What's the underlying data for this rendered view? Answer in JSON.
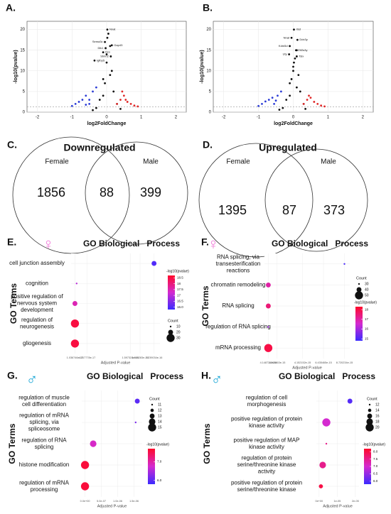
{
  "chart_data": [
    {
      "type": "volcano",
      "panel": "A.",
      "sex_symbol": "♀",
      "symbol_color": "#f07ad8",
      "xlabel": "log2FoldChange",
      "ylabel": "-log10(pvalue)",
      "xlim": [
        -2.3,
        2.3
      ],
      "ylim": [
        0,
        22
      ],
      "xticks": [
        -2,
        -1,
        0,
        1,
        2
      ],
      "yticks": [
        0,
        5,
        10,
        15,
        20
      ],
      "hline": 1.3,
      "grid": true,
      "series": [
        {
          "color": "#2b3bd6",
          "x": [
            -1.0,
            -0.9,
            -0.8,
            -0.7,
            -0.6,
            -0.5,
            -0.4,
            -0.3,
            -0.5,
            -0.6
          ],
          "values": [
            1.5,
            2,
            2.5,
            3,
            4,
            3,
            5,
            6,
            2,
            1.8
          ]
        },
        {
          "color": "#111111",
          "x": [
            -0.3,
            -0.2,
            -0.1,
            0,
            0.05,
            0.1,
            0.15,
            0.2,
            -0.05,
            0,
            0.02,
            0.1,
            -0.1,
            0.3,
            -0.4,
            0.4
          ],
          "values": [
            1,
            3,
            8,
            12,
            19,
            16,
            10,
            5,
            7,
            14,
            18,
            9,
            4,
            2,
            0.5,
            0.8
          ]
        },
        {
          "color": "#e02828",
          "x": [
            0.3,
            0.4,
            0.5,
            0.6,
            0.7,
            0.8,
            0.9,
            0.45,
            0.55
          ],
          "values": [
            2,
            3,
            4,
            2.5,
            2,
            1.6,
            1.4,
            5,
            3
          ]
        },
        {
          "color": "#111111",
          "x": [
            0.02,
            -0.05,
            0.15,
            -0.03,
            -0.1,
            0.12,
            -0.35
          ],
          "values": [
            20,
            17,
            16.2,
            15.5,
            14.5,
            13.5,
            12.5
          ],
          "labels": [
            "Nnat",
            "Sema3c",
            "Gap43",
            "Dlk1",
            "Dcx",
            "Stmn2",
            "Igfbp5"
          ]
        }
      ]
    },
    {
      "type": "volcano",
      "panel": "B.",
      "sex_symbol": "♂",
      "symbol_color": "#1aa6d6",
      "xlabel": "log2FoldChange",
      "ylabel": "-log10(pvalue)",
      "xlim": [
        -2.3,
        2.3
      ],
      "ylim": [
        0,
        22
      ],
      "xticks": [
        -2,
        -1,
        0,
        1,
        2
      ],
      "yticks": [
        0,
        5,
        10,
        15,
        20
      ],
      "hline": 1.3,
      "grid": true,
      "series": [
        {
          "color": "#2b3bd6",
          "x": [
            -1.0,
            -0.9,
            -0.8,
            -0.7,
            -0.6,
            -0.5,
            -0.45,
            -0.35,
            -0.55
          ],
          "values": [
            1.5,
            2,
            2.6,
            3,
            3.5,
            2.8,
            4,
            5,
            2
          ]
        },
        {
          "color": "#111111",
          "x": [
            -0.3,
            -0.2,
            -0.1,
            0,
            0.05,
            0.1,
            0.15,
            0.2,
            -0.05,
            0,
            0.02,
            0.1,
            -0.1,
            0.3,
            -0.4,
            0.35
          ],
          "values": [
            1,
            3,
            7,
            11,
            13,
            15,
            9,
            5,
            8,
            10,
            12,
            6,
            4,
            2,
            0.6,
            0.8
          ]
        },
        {
          "color": "#e02828",
          "x": [
            0.3,
            0.4,
            0.5,
            0.6,
            0.7,
            0.8,
            0.9,
            0.45
          ],
          "values": [
            2,
            3,
            3.5,
            2.5,
            2,
            1.6,
            1.4,
            4
          ]
        },
        {
          "color": "#111111",
          "x": [
            0.02,
            -0.05,
            0.12,
            -0.1,
            0.08,
            -0.12,
            0.1
          ],
          "values": [
            20,
            18,
            17.5,
            16,
            15,
            14,
            13.5
          ],
          "labels": [
            "Xist",
            "Nnat",
            "Ddx3y",
            "Kdm5d",
            "Eif2s3y",
            "Uty",
            "Tsix"
          ]
        }
      ]
    },
    {
      "type": "venn",
      "panel": "C.",
      "title": "Downregulated",
      "sets": [
        "Female",
        "Male"
      ],
      "counts": [
        1856,
        88,
        399
      ]
    },
    {
      "type": "venn",
      "panel": "D.",
      "title": "Upregulated",
      "sets": [
        "Female",
        "Male"
      ],
      "counts": [
        1395,
        87,
        373
      ]
    },
    {
      "type": "dot",
      "panel": "E.",
      "sex_symbol": "♀",
      "symbol_color": "#f07ad8",
      "title": "GO Biological   Process",
      "xlabel": "Adjusted P-value",
      "ylabel": "GO Terms",
      "categories": [
        "cell junction assembly",
        "cognition",
        "positive regulation of nervous system development",
        "regulation of neurogenesis",
        "gliogenesis"
      ],
      "values": [
        2.24e-16,
        1.5e-17,
        1.04e-17,
        1.04e-17,
        1.04e-17
      ],
      "sizes": [
        20,
        10,
        20,
        30,
        30
      ],
      "color_values": [
        16.0,
        17.0,
        17.5,
        18.5,
        18.5
      ],
      "xlim": [
        0,
        2.4e-16
      ],
      "xticks": [
        {
          "value": 1.036746e-17,
          "label": "1.036746e-17"
        },
        {
          "value": 4.317778e-17,
          "label": "4.317778e-17"
        },
        {
          "value": 1.597324e-16,
          "label": "1.597324e-16"
        },
        {
          "value": 1.863283e-16,
          "label": "1.863283e-16"
        },
        {
          "value": 2.239034e-16,
          "label": "2.239034e-16"
        }
      ],
      "color_title": "-log10(pvalue)",
      "color_scale": [
        "#3b2bff",
        "#d42ad0",
        "#ff0a2a"
      ],
      "clim": [
        15.8,
        18.7
      ],
      "color_ticks": [
        {
          "value": 16,
          "label": "16.0"
        },
        16.5,
        17,
        17.5,
        18,
        18.5
      ],
      "size_title": "Count",
      "size_lim": [
        10,
        30
      ],
      "size_ticks": [
        10,
        20,
        30
      ]
    },
    {
      "type": "dot",
      "panel": "F.",
      "sex_symbol": "♀",
      "symbol_color": "#f07ad8",
      "title": "GO Biological   Process",
      "xlabel": "Adjusted P-value",
      "ylabel": "GO Terms",
      "categories": [
        "RNA splicing, via transesterification reactions",
        "chromatin remodeling",
        "RNA splicing",
        "regulation of RNA splicing",
        "mRNA processing"
      ],
      "values": [
        8.72e-15,
        4.2e-16,
        4.2e-16,
        4.2e-16,
        4.2e-16
      ],
      "sizes": [
        30,
        40,
        40,
        30,
        50
      ],
      "color_values": [
        15,
        17,
        17.5,
        16,
        18
      ],
      "xlim": [
        0,
        9.3e-15
      ],
      "xticks": [
        {
          "value": 4.148724e-16,
          "label": "4.148724e-16"
        },
        {
          "value": 1.368463e-15,
          "label": "1.368463e-15"
        },
        {
          "value": 4.152152e-15,
          "label": "4.152152e-15"
        },
        {
          "value": 6.435465e-15,
          "label": "6.435465e-15"
        },
        {
          "value": 8.720234e-15,
          "label": "8.720234e-15"
        }
      ],
      "color_title": "-log10(pvalue)",
      "color_scale": [
        "#3b2bff",
        "#d42ad0",
        "#ff0a2a"
      ],
      "clim": [
        14.8,
        18.3
      ],
      "color_ticks": [
        15,
        16,
        17,
        18
      ],
      "size_title": "Count",
      "size_lim": [
        30,
        50
      ],
      "size_ticks": [
        30,
        40,
        50
      ]
    },
    {
      "type": "dot",
      "panel": "G.",
      "sex_symbol": "♂",
      "symbol_color": "#1aa6d6",
      "title": "GO Biological   Process",
      "xlabel": "Adjusted P-value",
      "ylabel": "GO Terms",
      "categories": [
        "regulation of muscle cell differentiation",
        "regulation of mRNA splicing, via spliceosome",
        "regulation of RNA splicing",
        "histone modification",
        "regulation of mRNA processing"
      ],
      "values": [
        1.6e-06,
        1.55e-06,
        2.5e-07,
        0,
        0
      ],
      "sizes": [
        13,
        11,
        14,
        15,
        15
      ],
      "color_values": [
        6.0,
        6.2,
        6.8,
        7.6,
        7.6
      ],
      "xlim": [
        -1e-07,
        1.75e-06
      ],
      "xticks": [
        {
          "value": 0,
          "label": "0.0e+00"
        },
        {
          "value": 5e-07,
          "label": "5.0e-07"
        },
        {
          "value": 1e-06,
          "label": "1.0e-06"
        },
        {
          "value": 1.5e-06,
          "label": "1.5e-06"
        }
      ],
      "color_title": "-log10(pvalue)",
      "color_scale": [
        "#3b2bff",
        "#d42ad0",
        "#ff0a2a"
      ],
      "clim": [
        5.8,
        7.7
      ],
      "color_ticks": [
        {
          "value": 6,
          "label": "6.0"
        },
        {
          "value": 7,
          "label": "7.0"
        }
      ],
      "size_title": "Count",
      "size_lim": [
        11,
        15
      ],
      "size_ticks": [
        11,
        12,
        13,
        14,
        15
      ]
    },
    {
      "type": "dot",
      "panel": "H.",
      "sex_symbol": "♂",
      "symbol_color": "#1aa6d6",
      "title": "GO Biological   Process",
      "xlabel": "Adjusted P-value",
      "ylabel": "GO Terms",
      "categories": [
        "regulation of cell morphogenesis",
        "positive regulation of protein kinase activity",
        "positive regulation of MAP kinase activity",
        "regulation of protein serine/threonine kinase activity",
        "positive regulation of protein serine/threonine kinase"
      ],
      "values": [
        1.7e-05,
        4e-06,
        4e-06,
        2e-06,
        1e-06
      ],
      "sizes": [
        16,
        20,
        12,
        18,
        15
      ],
      "color_values": [
        6.0,
        7.0,
        7.5,
        7.5,
        8.0
      ],
      "xlim": [
        -1.5e-06,
        2.2e-05
      ],
      "xticks": [
        {
          "value": 0,
          "label": "0e+00"
        },
        {
          "value": 1e-05,
          "label": "1e-05"
        },
        {
          "value": 2e-05,
          "label": "2e-05"
        }
      ],
      "color_title": "-log10(pvalue)",
      "color_scale": [
        "#3b2bff",
        "#d42ad0",
        "#ff0a2a"
      ],
      "clim": [
        5.8,
        8.2
      ],
      "color_ticks": [
        {
          "value": 6,
          "label": "6.0"
        },
        6.5,
        {
          "value": 7,
          "label": "7.0"
        },
        7.5,
        {
          "value": 8,
          "label": "8.0"
        }
      ],
      "size_title": "Count",
      "size_lim": [
        12,
        20
      ],
      "size_ticks": [
        12,
        14,
        16,
        18,
        20
      ]
    }
  ]
}
